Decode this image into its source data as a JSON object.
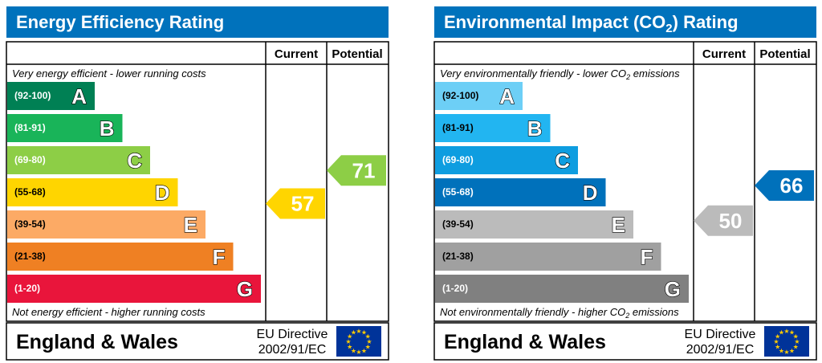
{
  "charts": [
    {
      "id": "energy",
      "title": "Energy Efficiency Rating",
      "co2_title": false,
      "header_current": "Current",
      "header_potential": "Potential",
      "top_note": "Very energy efficient - lower running costs",
      "bottom_note": "Not energy efficient - higher running costs",
      "region": "England & Wales",
      "directive_line1": "EU Directive",
      "directive_line2": "2002/91/EC"
    },
    {
      "id": "env",
      "title_prefix": "Environmental Impact (CO",
      "title_sub": "2",
      "title_suffix": ") Rating",
      "co2_title": true,
      "header_current": "Current",
      "header_potential": "Potential",
      "top_note_prefix": "Very environmentally friendly - lower CO",
      "top_note_sub": "2",
      "top_note_suffix": " emissions",
      "bottom_note_prefix": "Not environmentally friendly - higher CO",
      "bottom_note_sub": "2",
      "bottom_note_suffix": " emissions",
      "region": "England & Wales",
      "directive_line1": "EU Directive",
      "directive_line2": "2002/91/EC"
    }
  ],
  "chart_data": [
    {
      "type": "bar",
      "title": "Energy Efficiency Rating",
      "bands": [
        {
          "letter": "A",
          "range": "(92-100)",
          "min": 92,
          "max": 100,
          "color": "#008054"
        },
        {
          "letter": "B",
          "range": "(81-91)",
          "min": 81,
          "max": 91,
          "color": "#19b459"
        },
        {
          "letter": "C",
          "range": "(69-80)",
          "min": 69,
          "max": 80,
          "color": "#8dce46"
        },
        {
          "letter": "D",
          "range": "(55-68)",
          "min": 55,
          "max": 68,
          "color": "#ffd500"
        },
        {
          "letter": "E",
          "range": "(39-54)",
          "min": 39,
          "max": 54,
          "color": "#fcaa65"
        },
        {
          "letter": "F",
          "range": "(21-38)",
          "min": 21,
          "max": 38,
          "color": "#ef8023"
        },
        {
          "letter": "G",
          "range": "(1-20)",
          "min": 1,
          "max": 20,
          "color": "#e9153b"
        }
      ],
      "current": 57,
      "potential": 71,
      "current_color": "#ffd500",
      "potential_color": "#8dce46"
    },
    {
      "type": "bar",
      "title": "Environmental Impact (CO2) Rating",
      "bands": [
        {
          "letter": "A",
          "range": "(92-100)",
          "min": 92,
          "max": 100,
          "color": "#6dcff6"
        },
        {
          "letter": "B",
          "range": "(81-91)",
          "min": 81,
          "max": 91,
          "color": "#22b5f1"
        },
        {
          "letter": "C",
          "range": "(69-80)",
          "min": 69,
          "max": 80,
          "color": "#0e9de0"
        },
        {
          "letter": "D",
          "range": "(55-68)",
          "min": 55,
          "max": 68,
          "color": "#0071bb"
        },
        {
          "letter": "E",
          "range": "(39-54)",
          "min": 39,
          "max": 54,
          "color": "#bbbbbb"
        },
        {
          "letter": "F",
          "range": "(21-38)",
          "min": 21,
          "max": 38,
          "color": "#a0a0a0"
        },
        {
          "letter": "G",
          "range": "(1-20)",
          "min": 1,
          "max": 20,
          "color": "#808080"
        }
      ],
      "current": 50,
      "potential": 66,
      "current_color": "#bbbbbb",
      "potential_color": "#0071bb"
    }
  ],
  "colors": {
    "title_bar": "#0072bc",
    "eu_flag": "#003399",
    "eu_star": "#ffcc00"
  }
}
